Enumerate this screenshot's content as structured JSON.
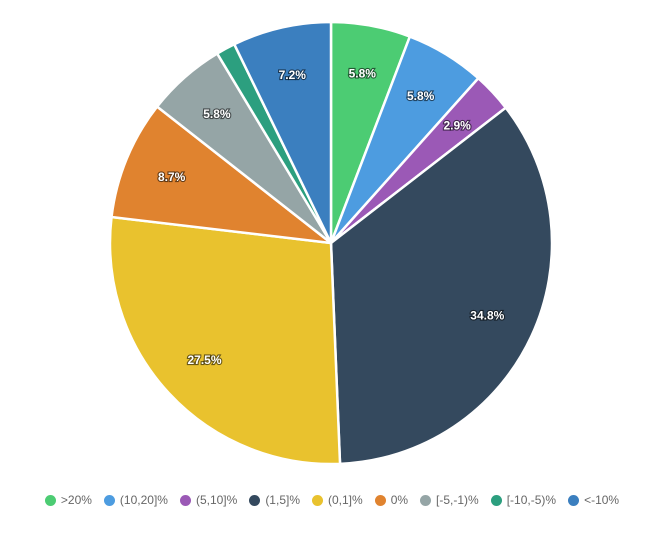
{
  "chart_data": {
    "type": "pie",
    "title": "",
    "start_angle_deg": 0,
    "slices": [
      {
        "label": ">20%",
        "value": 5.8,
        "value_label": "5.8%",
        "color": "#4ccc73"
      },
      {
        "label": "(10,20]%",
        "value": 5.8,
        "value_label": "5.8%",
        "color": "#4d9ce0"
      },
      {
        "label": "(5,10]%",
        "value": 2.9,
        "value_label": "2.9%",
        "color": "#9b59b6"
      },
      {
        "label": "(1,5]%",
        "value": 34.8,
        "value_label": "34.8%",
        "color": "#34495e"
      },
      {
        "label": "(0,1]%",
        "value": 27.5,
        "value_label": "27.5%",
        "color": "#e9c22e"
      },
      {
        "label": "0%",
        "value": 8.7,
        "value_label": "8.7%",
        "color": "#e0832f"
      },
      {
        "label": "[-5,-1)%",
        "value": 5.8,
        "value_label": "5.8%",
        "color": "#95a5a6"
      },
      {
        "label": "[-10,-5)%",
        "value": 1.4,
        "value_label": "",
        "color": "#2c9f7f"
      },
      {
        "label": "<-10%",
        "value": 7.2,
        "value_label": "7.2%",
        "color": "#3b7fbf"
      }
    ],
    "legend_position": "bottom"
  }
}
